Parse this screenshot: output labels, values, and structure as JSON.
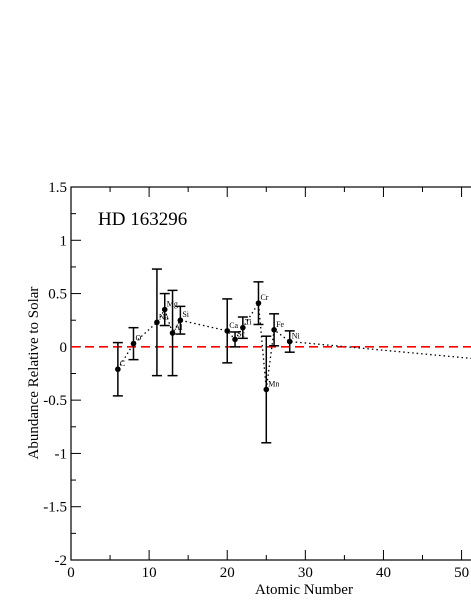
{
  "chart_data": {
    "type": "scatter",
    "annotation": "HD 163296",
    "xlabel": "Atomic Number",
    "ylabel": "Abundance Relative to Solar",
    "xlim": [
      0,
      53
    ],
    "ylim": [
      -2,
      1.5
    ],
    "x_ticks": [
      0,
      10,
      20,
      30,
      40,
      50
    ],
    "x_tick_labels": [
      "0",
      "10",
      "20",
      "30",
      "40",
      "50"
    ],
    "y_ticks": [
      -2,
      -1.5,
      -1,
      -0.5,
      0,
      0.5,
      1,
      1.5
    ],
    "y_tick_labels": [
      "-2",
      "-1.5",
      "-1",
      "-0.5",
      "0",
      "0.5",
      "1",
      "1.5"
    ],
    "reference_line": {
      "y": 0,
      "color": "#ff0000",
      "style": "dashed"
    },
    "points": [
      {
        "label": "C",
        "x": 6,
        "y": -0.21,
        "err": 0.25
      },
      {
        "label": "O",
        "x": 8,
        "y": 0.03,
        "err": 0.15
      },
      {
        "label": "Na",
        "x": 11,
        "y": 0.23,
        "err": 0.5
      },
      {
        "label": "Mg",
        "x": 12,
        "y": 0.35,
        "err": 0.15
      },
      {
        "label": "Al",
        "x": 13,
        "y": 0.13,
        "err": 0.4
      },
      {
        "label": "Si",
        "x": 14,
        "y": 0.25,
        "err": 0.13
      },
      {
        "label": "Ca",
        "x": 20,
        "y": 0.15,
        "err": 0.3
      },
      {
        "label": "Sc",
        "x": 21,
        "y": 0.07,
        "err": 0.07
      },
      {
        "label": "Ti",
        "x": 22,
        "y": 0.18,
        "err": 0.1
      },
      {
        "label": "Cr",
        "x": 24,
        "y": 0.41,
        "err": 0.2
      },
      {
        "label": "Mn",
        "x": 25,
        "y": -0.4,
        "err": 0.5
      },
      {
        "label": "Fe",
        "x": 26,
        "y": 0.16,
        "err": 0.15
      },
      {
        "label": "Ni",
        "x": 28,
        "y": 0.05,
        "err": 0.1
      }
    ],
    "trend_line": {
      "style": "dotted",
      "color": "#000000",
      "x": [
        6,
        8,
        11,
        12,
        13,
        14,
        20,
        21,
        22,
        24,
        25,
        26,
        28,
        53
      ],
      "y": [
        -0.21,
        0.03,
        0.23,
        0.35,
        0.13,
        0.25,
        0.15,
        0.07,
        0.18,
        0.41,
        -0.4,
        0.16,
        0.05,
        -0.12
      ]
    }
  }
}
